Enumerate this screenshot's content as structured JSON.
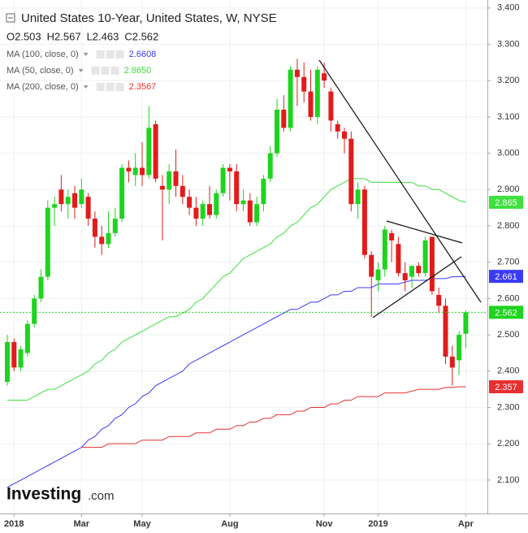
{
  "chart_data": {
    "type": "candlestick",
    "title": "United States 10-Year, United States, W, NYSE",
    "last_labels": [
      "O2.503",
      "H2.567",
      "L2.463",
      "C2.562"
    ],
    "logo": [
      "Investing",
      ".com"
    ],
    "categories": [
      null,
      "2018",
      null,
      null,
      null,
      null,
      null,
      null,
      null,
      null,
      null,
      "Mar",
      null,
      null,
      null,
      null,
      null,
      null,
      null,
      null,
      "May",
      null,
      null,
      null,
      null,
      null,
      null,
      null,
      null,
      null,
      null,
      null,
      null,
      "Aug",
      null,
      null,
      null,
      null,
      null,
      null,
      null,
      null,
      null,
      null,
      null,
      null,
      null,
      "Nov",
      null,
      null,
      null,
      null,
      null,
      null,
      null,
      "2019",
      null,
      null,
      null,
      null,
      null,
      null,
      null,
      null,
      null,
      null,
      null,
      null,
      "Apr"
    ],
    "open": [
      2.37,
      2.48,
      2.41,
      2.45,
      2.53,
      2.6,
      2.66,
      2.85,
      2.9,
      2.86,
      2.89,
      2.86,
      2.88,
      2.82,
      2.77,
      2.75,
      2.78,
      2.82,
      2.96,
      2.94,
      2.96,
      2.94,
      3.08,
      2.91,
      2.9,
      2.95,
      2.91,
      2.88,
      2.85,
      2.82,
      2.86,
      2.83,
      2.89,
      2.96,
      2.95,
      2.86,
      2.87,
      2.81,
      2.86,
      2.93,
      3.0,
      3.12,
      3.07,
      3.23,
      3.21,
      3.17,
      3.1,
      3.22,
      3.17,
      3.08,
      3.06,
      3.04,
      2.86,
      2.9,
      2.72,
      2.65,
      2.68,
      2.78,
      2.75,
      2.67,
      2.66,
      2.69,
      2.67,
      2.77,
      2.61,
      2.58,
      2.44,
      2.43,
      2.503
    ],
    "high": [
      2.5,
      2.49,
      2.47,
      2.54,
      2.61,
      2.68,
      2.87,
      2.88,
      2.94,
      2.9,
      2.91,
      2.93,
      2.89,
      2.84,
      2.8,
      2.84,
      2.85,
      2.97,
      2.98,
      3.0,
      3.03,
      3.13,
      3.09,
      2.94,
      2.97,
      3.01,
      2.94,
      2.9,
      2.88,
      2.87,
      2.91,
      2.9,
      2.97,
      2.97,
      2.97,
      2.9,
      2.89,
      2.88,
      2.94,
      3.02,
      3.15,
      3.16,
      3.24,
      3.26,
      3.25,
      3.23,
      3.24,
      3.25,
      3.18,
      3.09,
      3.07,
      3.06,
      2.92,
      2.91,
      2.73,
      2.7,
      2.8,
      2.79,
      2.77,
      2.7,
      2.69,
      2.7,
      2.77,
      2.77,
      2.63,
      2.6,
      2.47,
      2.51,
      2.567
    ],
    "low": [
      2.36,
      2.4,
      2.4,
      2.44,
      2.52,
      2.59,
      2.65,
      2.8,
      2.84,
      2.82,
      2.82,
      2.85,
      2.8,
      2.74,
      2.72,
      2.74,
      2.77,
      2.81,
      2.92,
      2.91,
      2.91,
      2.93,
      2.92,
      2.76,
      2.86,
      2.88,
      2.86,
      2.83,
      2.8,
      2.8,
      2.82,
      2.82,
      2.88,
      2.87,
      2.84,
      2.84,
      2.8,
      2.8,
      2.84,
      2.92,
      2.99,
      3.06,
      3.06,
      3.13,
      3.14,
      3.09,
      3.08,
      3.18,
      3.06,
      3.04,
      3.0,
      2.84,
      2.82,
      2.71,
      2.55,
      2.62,
      2.66,
      2.7,
      2.66,
      2.62,
      2.63,
      2.66,
      2.66,
      2.61,
      2.56,
      2.42,
      2.36,
      2.39,
      2.463
    ],
    "close": [
      2.48,
      2.41,
      2.46,
      2.53,
      2.6,
      2.66,
      2.85,
      2.86,
      2.86,
      2.88,
      2.85,
      2.9,
      2.82,
      2.77,
      2.75,
      2.78,
      2.82,
      2.96,
      2.95,
      2.96,
      2.94,
      3.07,
      2.93,
      2.9,
      2.95,
      2.91,
      2.88,
      2.85,
      2.82,
      2.86,
      2.83,
      2.89,
      2.96,
      2.95,
      2.86,
      2.87,
      2.81,
      2.86,
      2.93,
      3.0,
      3.12,
      3.07,
      3.23,
      3.21,
      3.17,
      3.1,
      3.23,
      3.2,
      3.09,
      3.06,
      3.04,
      2.86,
      2.9,
      2.72,
      2.66,
      2.68,
      2.79,
      2.76,
      2.67,
      2.65,
      2.69,
      2.67,
      2.76,
      2.62,
      2.58,
      2.44,
      2.41,
      2.5,
      2.562
    ],
    "up_color": "#1ed41e",
    "down_color": "#e21b1b",
    "series": [
      {
        "name": "MA (100, close, 0)",
        "color": "#3a3af5",
        "legend_value": "2.6608",
        "values": [
          2.08,
          2.09,
          2.1,
          2.11,
          2.12,
          2.13,
          2.14,
          2.15,
          2.16,
          2.17,
          2.18,
          2.19,
          2.21,
          2.22,
          2.24,
          2.25,
          2.27,
          2.28,
          2.3,
          2.31,
          2.33,
          2.34,
          2.36,
          2.37,
          2.38,
          2.39,
          2.4,
          2.42,
          2.43,
          2.44,
          2.45,
          2.46,
          2.47,
          2.48,
          2.49,
          2.5,
          2.51,
          2.52,
          2.53,
          2.54,
          2.55,
          2.56,
          2.57,
          2.57,
          2.58,
          2.59,
          2.59,
          2.6,
          2.61,
          2.61,
          2.62,
          2.62,
          2.63,
          2.63,
          2.63,
          2.64,
          2.64,
          2.64,
          2.64,
          2.645,
          2.65,
          2.65,
          2.65,
          2.655,
          2.655,
          2.655,
          2.66,
          2.66,
          2.661
        ]
      },
      {
        "name": "MA (50, close, 0)",
        "color": "#3fe03f",
        "legend_value": "2.8650",
        "values": [
          2.32,
          2.32,
          2.32,
          2.32,
          2.33,
          2.34,
          2.35,
          2.35,
          2.36,
          2.37,
          2.38,
          2.39,
          2.4,
          2.42,
          2.43,
          2.45,
          2.46,
          2.48,
          2.49,
          2.5,
          2.51,
          2.52,
          2.53,
          2.54,
          2.55,
          2.55,
          2.56,
          2.57,
          2.59,
          2.6,
          2.62,
          2.64,
          2.66,
          2.67,
          2.69,
          2.71,
          2.72,
          2.73,
          2.74,
          2.75,
          2.77,
          2.78,
          2.8,
          2.81,
          2.83,
          2.85,
          2.86,
          2.88,
          2.9,
          2.91,
          2.92,
          2.93,
          2.93,
          2.93,
          2.92,
          2.92,
          2.92,
          2.92,
          2.92,
          2.92,
          2.92,
          2.91,
          2.91,
          2.9,
          2.9,
          2.89,
          2.88,
          2.87,
          2.865
        ]
      },
      {
        "name": "MA (200, close, 0)",
        "color": "#e83030",
        "legend_value": "2.3567",
        "values": [
          null,
          null,
          null,
          null,
          null,
          null,
          null,
          null,
          null,
          null,
          null,
          2.19,
          2.19,
          2.19,
          2.19,
          2.2,
          2.2,
          2.2,
          2.2,
          2.2,
          2.21,
          2.21,
          2.21,
          2.21,
          2.22,
          2.22,
          2.22,
          2.22,
          2.23,
          2.23,
          2.23,
          2.24,
          2.24,
          2.24,
          2.25,
          2.25,
          2.26,
          2.26,
          2.27,
          2.27,
          2.28,
          2.28,
          2.28,
          2.29,
          2.29,
          2.3,
          2.3,
          2.3,
          2.31,
          2.31,
          2.32,
          2.32,
          2.33,
          2.33,
          2.33,
          2.33,
          2.34,
          2.34,
          2.34,
          2.34,
          2.345,
          2.35,
          2.35,
          2.35,
          2.35,
          2.355,
          2.355,
          2.357,
          2.357
        ]
      }
    ],
    "ylim": [
      2.008,
      3.422
    ],
    "yticks": [
      {
        "value": 2.1,
        "label": "2.100"
      },
      {
        "value": 2.2,
        "label": "2.200"
      },
      {
        "value": 2.3,
        "label": "2.300"
      },
      {
        "value": 2.4,
        "label": "2.400"
      },
      {
        "value": 2.5,
        "label": "2.500"
      },
      {
        "value": 2.6,
        "label": "2.600"
      },
      {
        "value": 2.7,
        "label": "2.700"
      },
      {
        "value": 2.8,
        "label": "2.800"
      },
      {
        "value": 2.9,
        "label": "2.900"
      },
      {
        "value": 3.0,
        "label": "3.000"
      },
      {
        "value": 3.1,
        "label": "3.100"
      },
      {
        "value": 3.2,
        "label": "3.200"
      },
      {
        "value": 3.3,
        "label": "3.300"
      },
      {
        "value": 3.4,
        "label": "3.400"
      }
    ],
    "grid": true
  }
}
